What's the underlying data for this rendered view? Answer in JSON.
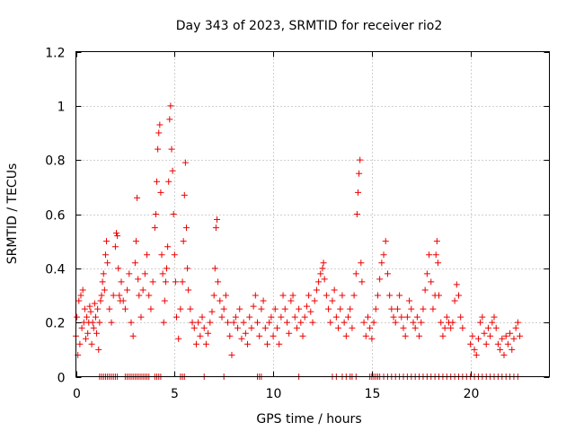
{
  "chart_data": {
    "type": "scatter",
    "title": "Day 343 of 2023, SRMTID for receiver rio2",
    "xlabel": "GPS time / hours",
    "ylabel": "SRMTID / TECUs",
    "xlim": [
      0,
      24
    ],
    "ylim": [
      0,
      1.2
    ],
    "xticks": [
      0,
      5,
      10,
      15,
      20
    ],
    "xtick_labels": [
      "0",
      "5",
      "10",
      "15",
      "20"
    ],
    "yticks": [
      0,
      0.2,
      0.4,
      0.6,
      0.8,
      1.0,
      1.2
    ],
    "ytick_labels": [
      "0",
      "0.2",
      "0.4",
      "0.6",
      "0.8",
      "1",
      "1.2"
    ],
    "grid": true,
    "marker": "+",
    "series": [
      {
        "name": "SRMTID",
        "color": "#ee0000",
        "points": [
          [
            0.0,
            0.15
          ],
          [
            0.05,
            0.22
          ],
          [
            0.1,
            0.08
          ],
          [
            0.15,
            0.28
          ],
          [
            0.2,
            0.12
          ],
          [
            0.25,
            0.3
          ],
          [
            0.3,
            0.18
          ],
          [
            0.35,
            0.32
          ],
          [
            0.4,
            0.2
          ],
          [
            0.45,
            0.25
          ],
          [
            0.5,
            0.14
          ],
          [
            0.55,
            0.22
          ],
          [
            0.6,
            0.16
          ],
          [
            0.65,
            0.2
          ],
          [
            0.7,
            0.26
          ],
          [
            0.75,
            0.24
          ],
          [
            0.8,
            0.12
          ],
          [
            0.85,
            0.2
          ],
          [
            0.9,
            0.18
          ],
          [
            0.95,
            0.27
          ],
          [
            1.0,
            0.22
          ],
          [
            1.05,
            0.16
          ],
          [
            1.1,
            0.25
          ],
          [
            1.15,
            0.1
          ],
          [
            1.2,
            0.2
          ],
          [
            1.25,
            0.28
          ],
          [
            1.3,
            0.3
          ],
          [
            1.35,
            0.35
          ],
          [
            1.4,
            0.38
          ],
          [
            1.45,
            0.32
          ],
          [
            1.5,
            0.45
          ],
          [
            1.55,
            0.5
          ],
          [
            1.6,
            0.42
          ],
          [
            1.7,
            0.25
          ],
          [
            1.8,
            0.2
          ],
          [
            1.9,
            0.3
          ],
          [
            2.0,
            0.48
          ],
          [
            2.05,
            0.53
          ],
          [
            2.1,
            0.52
          ],
          [
            2.15,
            0.4
          ],
          [
            2.2,
            0.3
          ],
          [
            2.25,
            0.28
          ],
          [
            2.3,
            0.35
          ],
          [
            2.4,
            0.28
          ],
          [
            2.5,
            0.25
          ],
          [
            2.6,
            0.32
          ],
          [
            2.7,
            0.38
          ],
          [
            2.8,
            0.2
          ],
          [
            2.9,
            0.15
          ],
          [
            3.0,
            0.42
          ],
          [
            3.05,
            0.5
          ],
          [
            3.1,
            0.66
          ],
          [
            3.15,
            0.36
          ],
          [
            3.2,
            0.3
          ],
          [
            3.3,
            0.22
          ],
          [
            3.4,
            0.32
          ],
          [
            3.5,
            0.38
          ],
          [
            3.6,
            0.45
          ],
          [
            3.7,
            0.3
          ],
          [
            3.8,
            0.25
          ],
          [
            3.9,
            0.35
          ],
          [
            4.0,
            0.55
          ],
          [
            4.05,
            0.6
          ],
          [
            4.1,
            0.72
          ],
          [
            4.15,
            0.84
          ],
          [
            4.2,
            0.9
          ],
          [
            4.25,
            0.93
          ],
          [
            4.3,
            0.68
          ],
          [
            4.35,
            0.45
          ],
          [
            4.4,
            0.38
          ],
          [
            4.45,
            0.2
          ],
          [
            4.5,
            0.28
          ],
          [
            4.55,
            0.35
          ],
          [
            4.6,
            0.4
          ],
          [
            4.65,
            0.48
          ],
          [
            4.7,
            0.72
          ],
          [
            4.75,
            0.95
          ],
          [
            4.8,
            1.0
          ],
          [
            4.85,
            0.84
          ],
          [
            4.9,
            0.76
          ],
          [
            4.95,
            0.6
          ],
          [
            5.0,
            0.45
          ],
          [
            5.05,
            0.35
          ],
          [
            5.1,
            0.22
          ],
          [
            5.2,
            0.14
          ],
          [
            5.3,
            0.25
          ],
          [
            5.4,
            0.35
          ],
          [
            5.45,
            0.5
          ],
          [
            5.5,
            0.67
          ],
          [
            5.55,
            0.79
          ],
          [
            5.6,
            0.55
          ],
          [
            5.65,
            0.4
          ],
          [
            5.7,
            0.32
          ],
          [
            5.8,
            0.25
          ],
          [
            5.9,
            0.2
          ],
          [
            6.0,
            0.18
          ],
          [
            6.1,
            0.12
          ],
          [
            6.2,
            0.2
          ],
          [
            6.3,
            0.15
          ],
          [
            6.4,
            0.22
          ],
          [
            6.5,
            0.18
          ],
          [
            6.6,
            0.12
          ],
          [
            6.7,
            0.16
          ],
          [
            6.8,
            0.2
          ],
          [
            6.9,
            0.24
          ],
          [
            7.0,
            0.3
          ],
          [
            7.05,
            0.4
          ],
          [
            7.1,
            0.55
          ],
          [
            7.15,
            0.58
          ],
          [
            7.2,
            0.35
          ],
          [
            7.3,
            0.28
          ],
          [
            7.4,
            0.22
          ],
          [
            7.5,
            0.25
          ],
          [
            7.6,
            0.3
          ],
          [
            7.7,
            0.2
          ],
          [
            7.8,
            0.15
          ],
          [
            7.9,
            0.08
          ],
          [
            8.0,
            0.2
          ],
          [
            8.1,
            0.22
          ],
          [
            8.2,
            0.18
          ],
          [
            8.3,
            0.25
          ],
          [
            8.4,
            0.14
          ],
          [
            8.5,
            0.2
          ],
          [
            8.6,
            0.16
          ],
          [
            8.7,
            0.12
          ],
          [
            8.8,
            0.22
          ],
          [
            8.9,
            0.18
          ],
          [
            9.0,
            0.26
          ],
          [
            9.1,
            0.3
          ],
          [
            9.2,
            0.2
          ],
          [
            9.3,
            0.15
          ],
          [
            9.4,
            0.25
          ],
          [
            9.5,
            0.28
          ],
          [
            9.6,
            0.18
          ],
          [
            9.7,
            0.12
          ],
          [
            9.8,
            0.2
          ],
          [
            9.9,
            0.22
          ],
          [
            10.0,
            0.15
          ],
          [
            10.1,
            0.25
          ],
          [
            10.2,
            0.18
          ],
          [
            10.3,
            0.12
          ],
          [
            10.4,
            0.22
          ],
          [
            10.5,
            0.3
          ],
          [
            10.6,
            0.25
          ],
          [
            10.7,
            0.2
          ],
          [
            10.8,
            0.16
          ],
          [
            10.9,
            0.28
          ],
          [
            11.0,
            0.3
          ],
          [
            11.1,
            0.22
          ],
          [
            11.2,
            0.18
          ],
          [
            11.3,
            0.25
          ],
          [
            11.4,
            0.2
          ],
          [
            11.5,
            0.15
          ],
          [
            11.6,
            0.22
          ],
          [
            11.7,
            0.26
          ],
          [
            11.8,
            0.3
          ],
          [
            11.9,
            0.24
          ],
          [
            12.0,
            0.2
          ],
          [
            12.1,
            0.28
          ],
          [
            12.2,
            0.32
          ],
          [
            12.3,
            0.35
          ],
          [
            12.4,
            0.38
          ],
          [
            12.5,
            0.4
          ],
          [
            12.55,
            0.42
          ],
          [
            12.6,
            0.36
          ],
          [
            12.7,
            0.3
          ],
          [
            12.8,
            0.25
          ],
          [
            12.9,
            0.2
          ],
          [
            13.0,
            0.28
          ],
          [
            13.1,
            0.32
          ],
          [
            13.2,
            0.22
          ],
          [
            13.3,
            0.18
          ],
          [
            13.4,
            0.25
          ],
          [
            13.5,
            0.3
          ],
          [
            13.6,
            0.2
          ],
          [
            13.7,
            0.15
          ],
          [
            13.8,
            0.22
          ],
          [
            13.9,
            0.25
          ],
          [
            14.0,
            0.18
          ],
          [
            14.1,
            0.3
          ],
          [
            14.2,
            0.38
          ],
          [
            14.25,
            0.6
          ],
          [
            14.3,
            0.68
          ],
          [
            14.35,
            0.75
          ],
          [
            14.4,
            0.8
          ],
          [
            14.45,
            0.42
          ],
          [
            14.5,
            0.35
          ],
          [
            14.6,
            0.2
          ],
          [
            14.7,
            0.15
          ],
          [
            14.8,
            0.22
          ],
          [
            14.9,
            0.18
          ],
          [
            15.0,
            0.14
          ],
          [
            15.1,
            0.2
          ],
          [
            15.2,
            0.25
          ],
          [
            15.3,
            0.3
          ],
          [
            15.4,
            0.36
          ],
          [
            15.5,
            0.42
          ],
          [
            15.6,
            0.45
          ],
          [
            15.7,
            0.5
          ],
          [
            15.8,
            0.38
          ],
          [
            15.9,
            0.3
          ],
          [
            16.0,
            0.25
          ],
          [
            16.1,
            0.22
          ],
          [
            16.2,
            0.2
          ],
          [
            16.3,
            0.25
          ],
          [
            16.4,
            0.3
          ],
          [
            16.5,
            0.22
          ],
          [
            16.6,
            0.18
          ],
          [
            16.7,
            0.15
          ],
          [
            16.8,
            0.22
          ],
          [
            16.9,
            0.28
          ],
          [
            17.0,
            0.25
          ],
          [
            17.1,
            0.2
          ],
          [
            17.2,
            0.18
          ],
          [
            17.3,
            0.22
          ],
          [
            17.4,
            0.15
          ],
          [
            17.5,
            0.2
          ],
          [
            17.6,
            0.25
          ],
          [
            17.7,
            0.32
          ],
          [
            17.8,
            0.38
          ],
          [
            17.9,
            0.45
          ],
          [
            18.0,
            0.35
          ],
          [
            18.1,
            0.25
          ],
          [
            18.2,
            0.3
          ],
          [
            18.25,
            0.45
          ],
          [
            18.3,
            0.5
          ],
          [
            18.35,
            0.42
          ],
          [
            18.4,
            0.3
          ],
          [
            18.5,
            0.2
          ],
          [
            18.6,
            0.15
          ],
          [
            18.7,
            0.18
          ],
          [
            18.8,
            0.22
          ],
          [
            18.9,
            0.2
          ],
          [
            19.0,
            0.18
          ],
          [
            19.1,
            0.2
          ],
          [
            19.2,
            0.28
          ],
          [
            19.3,
            0.34
          ],
          [
            19.4,
            0.3
          ],
          [
            19.5,
            0.22
          ],
          [
            19.6,
            0.18
          ],
          [
            20.0,
            0.12
          ],
          [
            20.1,
            0.15
          ],
          [
            20.2,
            0.1
          ],
          [
            20.3,
            0.08
          ],
          [
            20.4,
            0.14
          ],
          [
            20.5,
            0.2
          ],
          [
            20.6,
            0.22
          ],
          [
            20.7,
            0.16
          ],
          [
            20.8,
            0.12
          ],
          [
            20.9,
            0.18
          ],
          [
            21.0,
            0.15
          ],
          [
            21.1,
            0.2
          ],
          [
            21.2,
            0.22
          ],
          [
            21.3,
            0.18
          ],
          [
            21.4,
            0.12
          ],
          [
            21.5,
            0.1
          ],
          [
            21.6,
            0.14
          ],
          [
            21.7,
            0.08
          ],
          [
            21.8,
            0.15
          ],
          [
            21.9,
            0.12
          ],
          [
            22.0,
            0.16
          ],
          [
            22.1,
            0.1
          ],
          [
            22.2,
            0.14
          ],
          [
            22.3,
            0.18
          ],
          [
            22.4,
            0.2
          ],
          [
            22.5,
            0.15
          ]
        ],
        "zero_points_x": [
          1.2,
          1.3,
          1.4,
          1.5,
          1.6,
          1.7,
          1.8,
          1.9,
          2.0,
          2.1,
          2.5,
          2.6,
          2.7,
          2.8,
          2.9,
          3.0,
          3.1,
          3.2,
          3.3,
          3.4,
          3.5,
          3.6,
          3.7,
          4.0,
          4.1,
          4.2,
          4.3,
          5.3,
          5.4,
          5.5,
          6.5,
          7.5,
          9.2,
          9.3,
          9.4,
          11.3,
          13.0,
          13.2,
          13.5,
          13.7,
          13.9,
          14.0,
          14.2,
          14.9,
          15.0,
          15.1,
          15.2,
          15.3,
          15.4,
          15.6,
          15.8,
          16.0,
          16.2,
          16.4,
          16.6,
          16.8,
          17.0,
          17.2,
          17.4,
          17.6,
          17.8,
          18.0,
          18.2,
          18.4,
          18.6,
          18.8,
          19.0,
          19.2,
          19.4,
          19.6,
          19.8,
          20.0,
          20.2,
          20.4,
          20.6,
          20.8,
          21.0,
          21.2,
          21.4,
          21.6,
          21.8,
          22.0,
          22.2,
          22.4
        ]
      }
    ]
  }
}
